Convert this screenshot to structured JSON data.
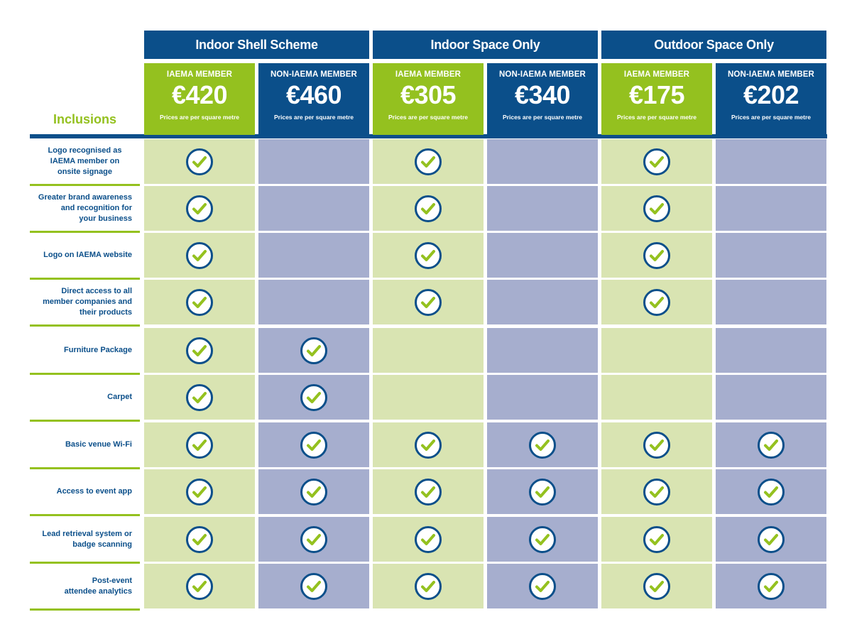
{
  "title": "Inclusions",
  "colors": {
    "brand_blue": "#0b4f8a",
    "brand_green": "#94c11f",
    "member_cell": "#d9e4b2",
    "nonmember_cell": "#a6aece"
  },
  "groups": [
    {
      "label": "Indoor Shell Scheme"
    },
    {
      "label": "Indoor Space Only"
    },
    {
      "label": "Outdoor Space Only"
    }
  ],
  "tiers": [
    {
      "group": 0,
      "type": "member",
      "label": "IAEMA MEMBER",
      "price": "€420",
      "note": "Prices are per square metre"
    },
    {
      "group": 0,
      "type": "nonmember",
      "label": "NON-IAEMA MEMBER",
      "price": "€460",
      "note": "Prices are per square metre"
    },
    {
      "group": 1,
      "type": "member",
      "label": "IAEMA MEMBER",
      "price": "€305",
      "note": "Prices are per square metre"
    },
    {
      "group": 1,
      "type": "nonmember",
      "label": "NON-IAEMA MEMBER",
      "price": "€340",
      "note": "Prices are per square metre"
    },
    {
      "group": 2,
      "type": "member",
      "label": "IAEMA MEMBER",
      "price": "€175",
      "note": "Prices are per square metre"
    },
    {
      "group": 2,
      "type": "nonmember",
      "label": "NON-IAEMA MEMBER",
      "price": "€202",
      "note": "Prices are per square metre"
    }
  ],
  "rows": [
    {
      "label": "Logo recognised as\nIAEMA member on\nonsite signage",
      "checks": [
        true,
        false,
        true,
        false,
        true,
        false
      ]
    },
    {
      "label": "Greater brand awareness\nand recognition for\nyour business",
      "checks": [
        true,
        false,
        true,
        false,
        true,
        false
      ]
    },
    {
      "label": "Logo on IAEMA website",
      "checks": [
        true,
        false,
        true,
        false,
        true,
        false
      ]
    },
    {
      "label": "Direct access to all\nmember companies and\ntheir products",
      "checks": [
        true,
        false,
        true,
        false,
        true,
        false
      ]
    },
    {
      "label": "Furniture Package",
      "checks": [
        true,
        true,
        false,
        false,
        false,
        false
      ]
    },
    {
      "label": "Carpet",
      "checks": [
        true,
        true,
        false,
        false,
        false,
        false
      ]
    },
    {
      "label": "Basic venue Wi-Fi",
      "checks": [
        true,
        true,
        true,
        true,
        true,
        true
      ]
    },
    {
      "label": "Access to event app",
      "checks": [
        true,
        true,
        true,
        true,
        true,
        true
      ]
    },
    {
      "label": "Lead retrieval system or\nbadge scanning",
      "checks": [
        true,
        true,
        true,
        true,
        true,
        true
      ]
    },
    {
      "label": "Post-event\nattendee analytics",
      "checks": [
        true,
        true,
        true,
        true,
        true,
        true
      ]
    }
  ]
}
